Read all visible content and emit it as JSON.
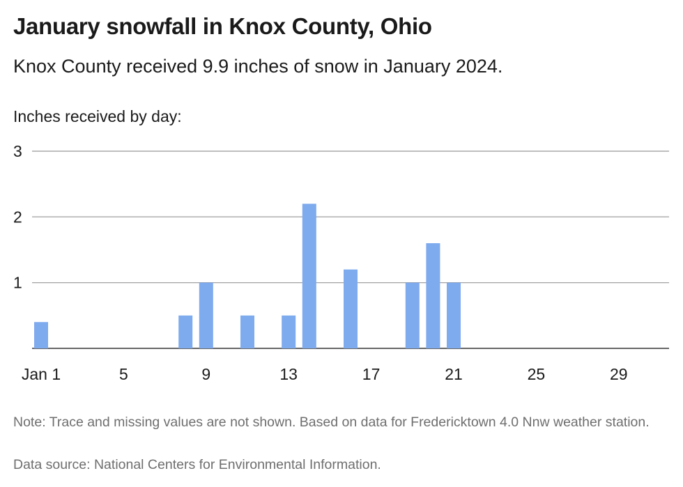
{
  "title": "January snowfall in Knox County, Ohio",
  "subtitle": "Knox County received 9.9 inches of snow in January 2024.",
  "note": "Note: Trace and missing values are not shown. Based on data for Fredericktown 4.0 Nnw weather station.",
  "source": "Data source: National Centers for Environmental Information.",
  "chart_data": {
    "type": "bar",
    "ylabel": "Inches received by day:",
    "xlabel": "",
    "ylim": [
      0,
      3
    ],
    "yticks": [
      "1",
      "2",
      "3"
    ],
    "xlim": [
      1,
      31
    ],
    "xticks": [
      {
        "day": 1,
        "label": "Jan 1"
      },
      {
        "day": 5,
        "label": "5"
      },
      {
        "day": 9,
        "label": "9"
      },
      {
        "day": 13,
        "label": "13"
      },
      {
        "day": 17,
        "label": "17"
      },
      {
        "day": 21,
        "label": "21"
      },
      {
        "day": 25,
        "label": "25"
      },
      {
        "day": 29,
        "label": "29"
      }
    ],
    "grid": true,
    "bar_color": "#7eaaee",
    "gridline_color": "#a8a8a8",
    "days": [
      1,
      8,
      9,
      11,
      13,
      14,
      16,
      19,
      20,
      21
    ],
    "values": [
      0.4,
      0.5,
      1,
      0.5,
      0.5,
      2.2,
      1.2,
      1,
      1.6,
      1
    ]
  }
}
